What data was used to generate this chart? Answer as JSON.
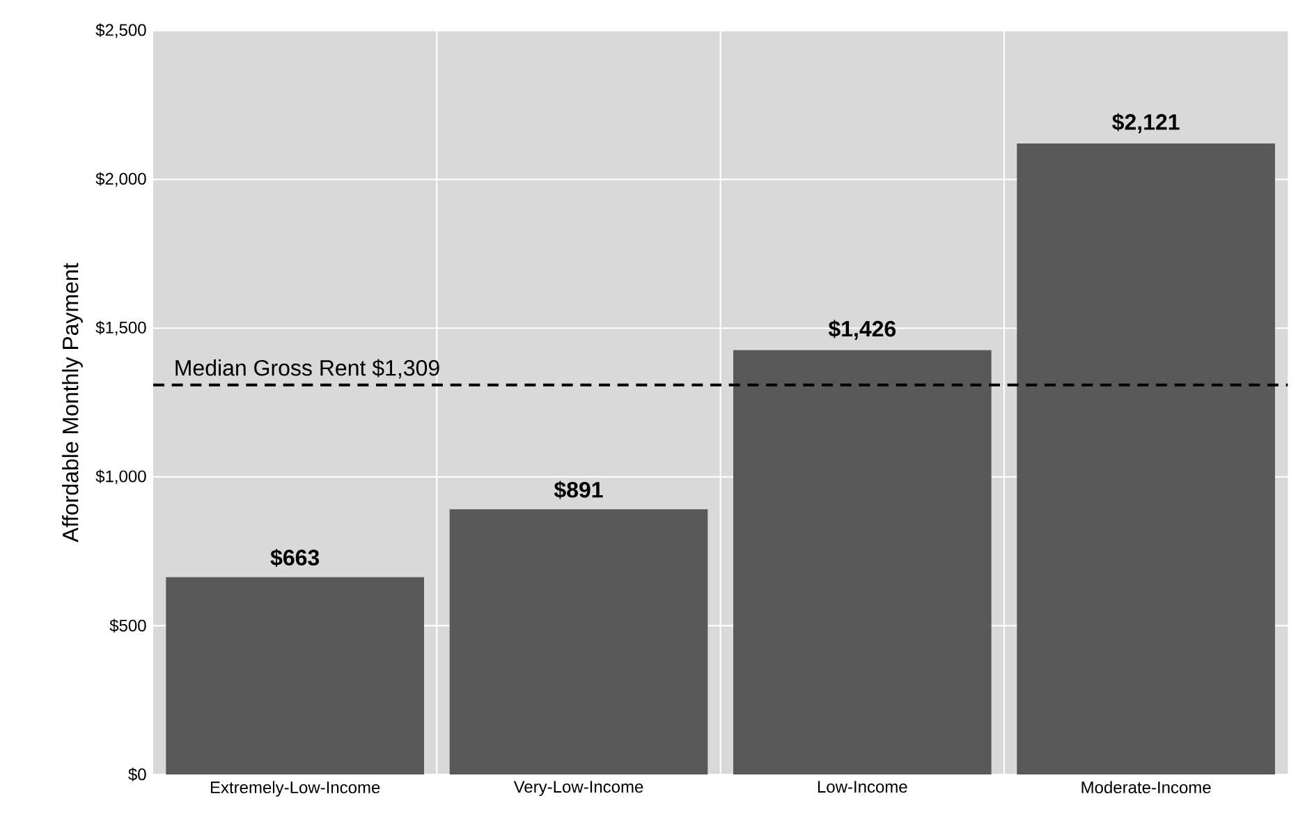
{
  "chart_data": {
    "type": "bar",
    "ylabel": "Affordable Monthly Payment",
    "categories": [
      "Extremely-Low-Income",
      "Very-Low-Income",
      "Low-Income",
      "Moderate-Income"
    ],
    "values": [
      663,
      891,
      1426,
      2121
    ],
    "value_labels": [
      "$663",
      "$891",
      "$1,426",
      "$2,121"
    ],
    "color": "#595959",
    "ylim": [
      0,
      2500
    ],
    "yticks": [
      {
        "value": 0,
        "label": "$0"
      },
      {
        "value": 500,
        "label": "$500"
      },
      {
        "value": 1000,
        "label": "$1,000"
      },
      {
        "value": 1500,
        "label": "$1,500"
      },
      {
        "value": 2000,
        "label": "$2,000"
      },
      {
        "value": 2500,
        "label": "$2,500"
      }
    ],
    "grid": true,
    "ref_lines": [
      {
        "axis": "y",
        "value": 1309,
        "label": "Median Gross Rent $1,309",
        "color": "#000000",
        "line_style": "dashed"
      }
    ]
  }
}
